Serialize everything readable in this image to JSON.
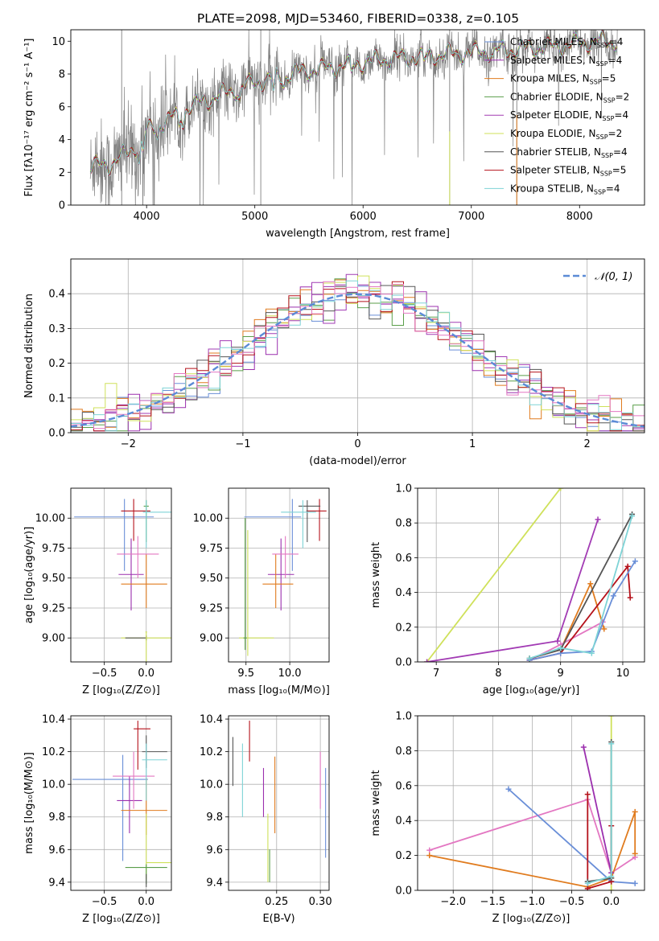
{
  "figure": {
    "title": "PLATE=2098, MJD=53460, FIBERID=0338, z=0.105",
    "colors": {
      "Chabrier MILES": "#6a8fd8",
      "Salpeter MILES": "#9b2fae",
      "Kroupa MILES": "#e07b1e",
      "Chabrier ELODIE": "#5a9e4a",
      "Salpeter ELODIE": "#a23bb4",
      "Kroupa ELODIE": "#cfe15a",
      "Chabrier STELIB": "#555555",
      "Salpeter STELIB": "#b5121b",
      "Kroupa STELIB": "#7ed3d6",
      "pink": "#e377c2",
      "data": "#808080",
      "normal": "#5b8bd6"
    }
  },
  "chart_data": [
    {
      "id": "spectrum",
      "type": "line",
      "xlabel": "wavelength [Angstrom, rest frame]",
      "ylabel": "Flux [fλ10⁻¹⁷ erg cm⁻² s⁻¹ A⁻¹]",
      "xlim": [
        3300,
        8600
      ],
      "ylim": [
        0,
        10.7
      ],
      "xticks": [
        "4000",
        "5000",
        "6000",
        "7000",
        "8000"
      ],
      "yticks": [
        "0",
        "2",
        "4",
        "6",
        "8",
        "10"
      ],
      "legend_loc": "upper-right",
      "legend": [
        {
          "name": "Chabrier MILES",
          "nssp": "4",
          "color": "#6a8fd8"
        },
        {
          "name": "Salpeter MILES",
          "nssp": "4",
          "color": "#9b2fae"
        },
        {
          "name": "Kroupa MILES",
          "nssp": "5",
          "color": "#e07b1e"
        },
        {
          "name": "Chabrier ELODIE",
          "nssp": "2",
          "color": "#5a9e4a"
        },
        {
          "name": "Salpeter ELODIE",
          "nssp": "4",
          "color": "#a23bb4"
        },
        {
          "name": "Kroupa ELODIE",
          "nssp": "2",
          "color": "#cfe15a"
        },
        {
          "name": "Chabrier STELIB",
          "nssp": "4",
          "color": "#555555"
        },
        {
          "name": "Salpeter STELIB",
          "nssp": "5",
          "color": "#b5121b"
        },
        {
          "name": "Kroupa STELIB",
          "nssp": "4",
          "color": "#7ed3d6"
        }
      ],
      "continuum": [
        [
          3480,
          2.3
        ],
        [
          3700,
          2.6
        ],
        [
          3900,
          3.6
        ],
        [
          4000,
          4.5
        ],
        [
          4200,
          5.2
        ],
        [
          4400,
          6.0
        ],
        [
          4600,
          6.5
        ],
        [
          4800,
          7.0
        ],
        [
          5000,
          7.5
        ],
        [
          5200,
          7.8
        ],
        [
          5400,
          8.1
        ],
        [
          5600,
          8.3
        ],
        [
          5800,
          8.5
        ],
        [
          6000,
          8.7
        ],
        [
          6200,
          8.9
        ],
        [
          6400,
          9.0
        ],
        [
          6600,
          9.1
        ],
        [
          6800,
          9.2
        ],
        [
          7000,
          9.3
        ],
        [
          7200,
          9.4
        ],
        [
          7400,
          9.5
        ],
        [
          7600,
          9.6
        ],
        [
          7800,
          9.7
        ],
        [
          8000,
          9.9
        ],
        [
          8300,
          10.0
        ]
      ],
      "data_span": [
        3480,
        8350
      ]
    },
    {
      "id": "residuals",
      "type": "histogram",
      "xlabel": "(data-model)/error",
      "ylabel": "Normed distribution",
      "xlim": [
        -2.5,
        2.5
      ],
      "ylim": [
        0,
        0.5
      ],
      "xticks": [
        "−2",
        "−1",
        "0",
        "1",
        "2"
      ],
      "yticks": [
        "0.0",
        "0.1",
        "0.2",
        "0.3",
        "0.4"
      ],
      "legend": "𝒩(0, 1)",
      "legend_loc": "upper-right",
      "bin_width": 0.1
    },
    {
      "id": "age_Z",
      "type": "errorbar",
      "xlabel": "Z [log₁₀(Z/Z⊙)]",
      "ylabel": "age  [log₁₀(age/yr)]",
      "xlim": [
        -0.9,
        0.3
      ],
      "ylim": [
        8.8,
        10.25
      ],
      "xticks": [
        "−0.5",
        "0.0"
      ],
      "yticks": [
        "9.00",
        "9.25",
        "9.50",
        "9.75",
        "10.00"
      ],
      "points": [
        {
          "x": -0.26,
          "y": 10.01,
          "xerr": [
            0.6,
            0.35
          ],
          "yerr": [
            0.45,
            0.15
          ],
          "c": "#6a8fd8"
        },
        {
          "x": -0.18,
          "y": 9.53,
          "xerr": [
            0.15,
            0.15
          ],
          "yerr": [
            0.3,
            0.3
          ],
          "c": "#9b2fae"
        },
        {
          "x": 0.0,
          "y": 9.45,
          "xerr": [
            0.3,
            0.25
          ],
          "yerr": [
            0.2,
            0.25
          ],
          "c": "#e07b1e"
        },
        {
          "x": -0.15,
          "y": 10.06,
          "xerr": [
            0.15,
            0.2
          ],
          "yerr": [
            0.25,
            0.1
          ],
          "c": "#b5121b"
        },
        {
          "x": -0.1,
          "y": 9.7,
          "xerr": [
            0.25,
            0.25
          ],
          "yerr": [
            0.2,
            0.15
          ],
          "c": "#e377c2"
        },
        {
          "x": 0.0,
          "y": 10.1,
          "xerr": [
            0.03,
            0.03
          ],
          "yerr": [
            0.3,
            0.05
          ],
          "c": "#5a9e4a"
        },
        {
          "x": 0.0,
          "y": 10.05,
          "xerr": [
            0.04,
            0.3
          ],
          "yerr": [
            0.3,
            0.1
          ],
          "c": "#7ed3d6"
        },
        {
          "x": 0.0,
          "y": 9.0,
          "xerr": [
            0.3,
            0.45
          ],
          "yerr": [
            0.02,
            0.02
          ],
          "c": "#cfe15a"
        },
        {
          "x": 0.0,
          "y": 9.0,
          "xerr": [
            0.25,
            0.0
          ],
          "yerr": [
            0.02,
            0.02
          ],
          "c": "#555555"
        },
        {
          "x": 0.0,
          "y": 9.05,
          "xerr": [
            0.01,
            0.01
          ],
          "yerr": [
            0.9,
            0.0
          ],
          "c": "#cfe15a"
        }
      ]
    },
    {
      "id": "age_mass",
      "type": "errorbar",
      "xlabel": "mass [log₁₀(M/M⊙)]",
      "ylabel": "",
      "xlim": [
        9.3,
        10.45
      ],
      "ylim": [
        8.8,
        10.25
      ],
      "xticks": [
        "9.5",
        "10.0"
      ],
      "yticks": [
        "9.00",
        "9.25",
        "9.50",
        "9.75",
        "10.00"
      ],
      "points": [
        {
          "x": 10.03,
          "y": 10.01,
          "xerr": [
            0.55,
            0.1
          ],
          "yerr": [
            0.45,
            0.15
          ],
          "c": "#6a8fd8"
        },
        {
          "x": 9.9,
          "y": 9.53,
          "xerr": [
            0.15,
            0.15
          ],
          "yerr": [
            0.3,
            0.3
          ],
          "c": "#9b2fae"
        },
        {
          "x": 9.84,
          "y": 9.45,
          "xerr": [
            0.15,
            0.2
          ],
          "yerr": [
            0.2,
            0.25
          ],
          "c": "#e07b1e"
        },
        {
          "x": 10.34,
          "y": 10.06,
          "xerr": [
            0.15,
            0.08
          ],
          "yerr": [
            0.25,
            0.1
          ],
          "c": "#b5121b"
        },
        {
          "x": 9.95,
          "y": 9.7,
          "xerr": [
            0.15,
            0.15
          ],
          "yerr": [
            0.2,
            0.15
          ],
          "c": "#e377c2"
        },
        {
          "x": 10.2,
          "y": 10.1,
          "xerr": [
            0.1,
            0.15
          ],
          "yerr": [
            0.3,
            0.05
          ],
          "c": "#555555"
        },
        {
          "x": 10.15,
          "y": 10.05,
          "xerr": [
            0.25,
            0.15
          ],
          "yerr": [
            0.3,
            0.1
          ],
          "c": "#7ed3d6"
        },
        {
          "x": 9.52,
          "y": 9.0,
          "xerr": [
            0.1,
            0.3
          ],
          "yerr": [
            0.15,
            0.9
          ],
          "c": "#cfe15a"
        },
        {
          "x": 9.49,
          "y": 9.0,
          "xerr": [
            0.02,
            0.02
          ],
          "yerr": [
            0.1,
            1.0
          ],
          "c": "#5a9e4a"
        }
      ]
    },
    {
      "id": "weight_age",
      "type": "line",
      "xlabel": "age  [log₁₀(age/yr)]",
      "ylabel": "mass weight",
      "xlim": [
        6.7,
        10.35
      ],
      "ylim": [
        0,
        1.0
      ],
      "xticks": [
        "7",
        "8",
        "9",
        "10"
      ],
      "yticks": [
        "0.0",
        "0.2",
        "0.4",
        "0.6",
        "0.8",
        "1.0"
      ],
      "series": [
        {
          "c": "#cfe15a",
          "pts": [
            [
              6.85,
              0.0
            ],
            [
              9.0,
              1.0
            ]
          ]
        },
        {
          "c": "#a23bb4",
          "pts": [
            [
              6.85,
              0.0
            ],
            [
              8.95,
              0.12
            ],
            [
              9.6,
              0.82
            ]
          ]
        },
        {
          "c": "#e07b1e",
          "pts": [
            [
              8.5,
              0.02
            ],
            [
              9.0,
              0.07
            ],
            [
              9.48,
              0.45
            ],
            [
              9.7,
              0.19
            ]
          ]
        },
        {
          "c": "#e377c2",
          "pts": [
            [
              8.5,
              0.01
            ],
            [
              9.0,
              0.1
            ],
            [
              9.68,
              0.23
            ]
          ]
        },
        {
          "c": "#b5121b",
          "pts": [
            [
              8.5,
              0.01
            ],
            [
              9.0,
              0.05
            ],
            [
              10.08,
              0.55
            ],
            [
              10.12,
              0.37
            ]
          ]
        },
        {
          "c": "#6a8fd8",
          "pts": [
            [
              8.5,
              0.01
            ],
            [
              9.0,
              0.05
            ],
            [
              9.5,
              0.06
            ],
            [
              9.85,
              0.38
            ],
            [
              10.2,
              0.58
            ]
          ]
        },
        {
          "c": "#555555",
          "pts": [
            [
              8.5,
              0.02
            ],
            [
              9.0,
              0.07
            ],
            [
              10.15,
              0.85
            ]
          ]
        },
        {
          "c": "#7ed3d6",
          "pts": [
            [
              8.5,
              0.02
            ],
            [
              9.0,
              0.08
            ],
            [
              9.5,
              0.05
            ],
            [
              10.15,
              0.84
            ]
          ]
        }
      ]
    },
    {
      "id": "mass_Z",
      "type": "errorbar",
      "xlabel": "Z [log₁₀(Z/Z⊙)]",
      "ylabel": "mass [log₁₀(M/M⊙)]",
      "xlim": [
        -0.9,
        0.3
      ],
      "ylim": [
        9.35,
        10.42
      ],
      "xticks": [
        "−0.5",
        "0.0"
      ],
      "yticks": [
        "9.4",
        "9.6",
        "9.8",
        "10.0",
        "10.2",
        "10.4"
      ],
      "points": [
        {
          "x": -0.28,
          "y": 10.03,
          "xerr": [
            0.6,
            0.3
          ],
          "yerr": [
            0.5,
            0.15
          ],
          "c": "#6a8fd8"
        },
        {
          "x": -0.2,
          "y": 9.9,
          "xerr": [
            0.15,
            0.15
          ],
          "yerr": [
            0.2,
            0.15
          ],
          "c": "#9b2fae"
        },
        {
          "x": 0.0,
          "y": 9.84,
          "xerr": [
            0.3,
            0.25
          ],
          "yerr": [
            0.15,
            0.2
          ],
          "c": "#e07b1e"
        },
        {
          "x": -0.1,
          "y": 10.34,
          "xerr": [
            0.05,
            0.15
          ],
          "yerr": [
            0.25,
            0.05
          ],
          "c": "#b5121b"
        },
        {
          "x": -0.15,
          "y": 10.05,
          "xerr": [
            0.25,
            0.25
          ],
          "yerr": [
            0.2,
            0.15
          ],
          "c": "#e377c2"
        },
        {
          "x": 0.0,
          "y": 10.2,
          "xerr": [
            0.05,
            0.25
          ],
          "yerr": [
            0.1,
            0.1
          ],
          "c": "#555555"
        },
        {
          "x": 0.0,
          "y": 10.15,
          "xerr": [
            0.05,
            0.25
          ],
          "yerr": [
            0.25,
            0.1
          ],
          "c": "#7ed3d6"
        },
        {
          "x": 0.0,
          "y": 9.52,
          "xerr": [
            0.0,
            0.3
          ],
          "yerr": [
            0.1,
            0.3
          ],
          "c": "#cfe15a"
        },
        {
          "x": 0.0,
          "y": 9.49,
          "xerr": [
            0.25,
            0.25
          ],
          "yerr": [
            0.1,
            0.02
          ],
          "c": "#5a9e4a"
        },
        {
          "x": 0.0,
          "y": 9.45,
          "xerr": [
            0.0,
            0.0
          ],
          "yerr": [
            0.08,
            0.0
          ],
          "c": "#555555"
        }
      ]
    },
    {
      "id": "mass_ebv",
      "type": "errorbar",
      "xlabel": "E(B-V)",
      "ylabel": "",
      "xlim": [
        0.195,
        0.31
      ],
      "ylim": [
        9.35,
        10.42
      ],
      "xticks": [
        "0.25",
        "0.30"
      ],
      "yticks": [
        "9.4",
        "9.6",
        "9.8",
        "10.0",
        "10.2",
        "10.4"
      ],
      "points": [
        {
          "x": 0.2,
          "y": 10.14,
          "xerr": [
            0,
            0
          ],
          "yerr": [
            0.15,
            0.15
          ],
          "c": "#555555"
        },
        {
          "x": 0.211,
          "y": 10.05,
          "xerr": [
            0,
            0
          ],
          "yerr": [
            0.25,
            0.2
          ],
          "c": "#7ed3d6"
        },
        {
          "x": 0.219,
          "y": 10.29,
          "xerr": [
            0,
            0
          ],
          "yerr": [
            0.15,
            0.1
          ],
          "c": "#b5121b"
        },
        {
          "x": 0.235,
          "y": 9.95,
          "xerr": [
            0,
            0
          ],
          "yerr": [
            0.15,
            0.15
          ],
          "c": "#9b2fae"
        },
        {
          "x": 0.24,
          "y": 9.6,
          "xerr": [
            0,
            0
          ],
          "yerr": [
            0.2,
            0.22
          ],
          "c": "#cfe15a"
        },
        {
          "x": 0.242,
          "y": 9.5,
          "xerr": [
            0,
            0
          ],
          "yerr": [
            0.1,
            0.1
          ],
          "c": "#5a9e4a"
        },
        {
          "x": 0.248,
          "y": 9.97,
          "xerr": [
            0,
            0
          ],
          "yerr": [
            0.27,
            0.2
          ],
          "c": "#e07b1e"
        },
        {
          "x": 0.3,
          "y": 10.05,
          "xerr": [
            0,
            0
          ],
          "yerr": [
            0.2,
            0.15
          ],
          "c": "#e377c2"
        },
        {
          "x": 0.306,
          "y": 9.8,
          "xerr": [
            0,
            0
          ],
          "yerr": [
            0.25,
            0.3
          ],
          "c": "#6a8fd8"
        }
      ]
    },
    {
      "id": "weight_Z",
      "type": "line",
      "xlabel": "Z [log₁₀(Z/Z⊙)]",
      "ylabel": "mass weight",
      "xlim": [
        -2.45,
        0.42
      ],
      "ylim": [
        0,
        1.0
      ],
      "xticks": [
        "−2.0",
        "−1.5",
        "−1.0",
        "−0.5",
        "0.0"
      ],
      "yticks": [
        "0.0",
        "0.2",
        "0.4",
        "0.6",
        "0.8",
        "1.0"
      ],
      "series": [
        {
          "c": "#cfe15a",
          "pts": [
            [
              0.0,
              0.0
            ],
            [
              0.0,
              1.0
            ]
          ]
        },
        {
          "c": "#e377c2",
          "pts": [
            [
              -2.3,
              0.23
            ],
            [
              -0.3,
              0.52
            ],
            [
              0.0,
              0.1
            ],
            [
              0.3,
              0.19
            ]
          ]
        },
        {
          "c": "#e07b1e",
          "pts": [
            [
              -2.3,
              0.2
            ],
            [
              -0.3,
              0.02
            ],
            [
              0.0,
              0.07
            ],
            [
              0.3,
              0.45
            ],
            [
              0.3,
              0.21
            ]
          ]
        },
        {
          "c": "#6a8fd8",
          "pts": [
            [
              -1.3,
              0.58
            ],
            [
              0.0,
              0.05
            ],
            [
              0.3,
              0.04
            ]
          ]
        },
        {
          "c": "#9b2fae",
          "pts": [
            [
              -0.35,
              0.82
            ],
            [
              0.0,
              0.1
            ]
          ]
        },
        {
          "c": "#b5121b",
          "pts": [
            [
              -0.3,
              0.55
            ],
            [
              -0.3,
              0.01
            ],
            [
              0.0,
              0.05
            ],
            [
              0.0,
              0.37
            ]
          ]
        },
        {
          "c": "#555555",
          "pts": [
            [
              -0.3,
              0.05
            ],
            [
              0.0,
              0.07
            ],
            [
              0.0,
              0.85
            ]
          ]
        },
        {
          "c": "#7ed3d6",
          "pts": [
            [
              -0.3,
              0.04
            ],
            [
              0.0,
              0.08
            ],
            [
              0.0,
              0.84
            ]
          ]
        }
      ]
    }
  ]
}
